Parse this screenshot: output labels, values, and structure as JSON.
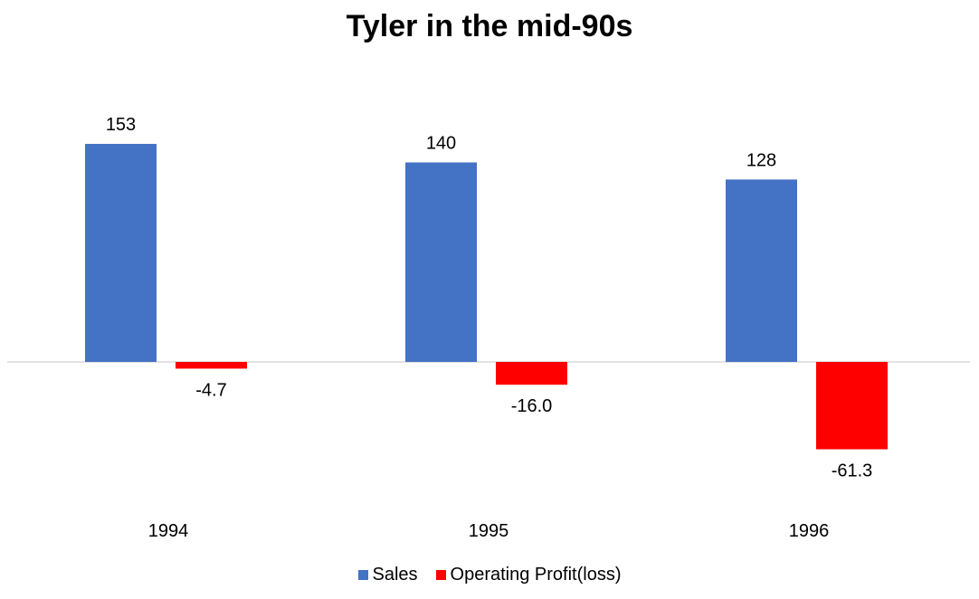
{
  "chart_data": {
    "type": "bar",
    "title": "Tyler in the mid-90s",
    "categories": [
      "1994",
      "1995",
      "1996"
    ],
    "series": [
      {
        "name": "Sales",
        "values": [
          153,
          140,
          128
        ],
        "labels": [
          "153",
          "140",
          "128"
        ],
        "color": "#4472C4"
      },
      {
        "name": "Operating Profit(loss)",
        "values": [
          -4.7,
          -16.0,
          -61.3
        ],
        "labels": [
          "-4.7",
          "-16.0",
          "-61.3"
        ],
        "color": "#FF0000"
      }
    ],
    "xlabel": "",
    "ylabel": "",
    "grid": false,
    "legend_position": "bottom",
    "axis_line_color": "#D9D9D9"
  }
}
